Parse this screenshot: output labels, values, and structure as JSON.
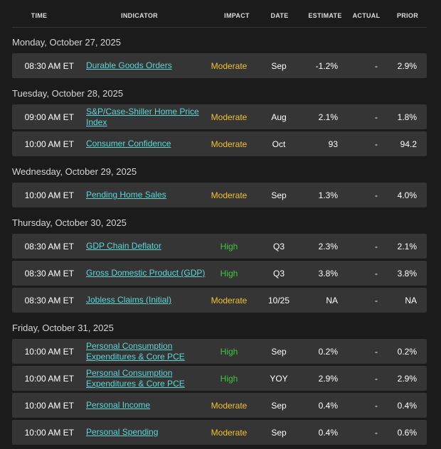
{
  "header": {
    "columns": [
      "TIME",
      "INDICATOR",
      "IMPACT",
      "DATE",
      "ESTIMATE",
      "ACTUAL",
      "PRIOR"
    ]
  },
  "days": [
    {
      "title": "Monday, October 27, 2025",
      "rows": [
        {
          "time": "08:30 AM ET",
          "indicator": "Durable Goods Orders",
          "impact": "Moderate",
          "impact_color": "#f2c230",
          "date": "Sep",
          "estimate": "-1.2%",
          "actual": "-",
          "prior": "2.9%"
        }
      ]
    },
    {
      "title": "Tuesday, October 28, 2025",
      "rows": [
        {
          "time": "09:00 AM ET",
          "indicator": "S&P/Case-Shiller Home Price Index",
          "impact": "Moderate",
          "impact_color": "#f2c230",
          "date": "Aug",
          "estimate": "2.1%",
          "actual": "-",
          "prior": "1.8%"
        },
        {
          "time": "10:00 AM ET",
          "indicator": "Consumer Confidence",
          "impact": "Moderate",
          "impact_color": "#f2c230",
          "date": "Oct",
          "estimate": "93",
          "actual": "-",
          "prior": "94.2"
        }
      ]
    },
    {
      "title": "Wednesday, October 29, 2025",
      "rows": [
        {
          "time": "10:00 AM ET",
          "indicator": "Pending Home Sales",
          "impact": "Moderate",
          "impact_color": "#f2c230",
          "date": "Sep",
          "estimate": "1.3%",
          "actual": "-",
          "prior": "4.0%"
        }
      ]
    },
    {
      "title": "Thursday, October 30, 2025",
      "rows": [
        {
          "time": "08:30 AM ET",
          "indicator": "GDP Chain Deflator",
          "impact": "High",
          "impact_color": "#3cc83c",
          "date": "Q3",
          "estimate": "2.3%",
          "actual": "-",
          "prior": "2.1%"
        },
        {
          "time": "08:30 AM ET",
          "indicator": "Gross Domestic Product (GDP)",
          "impact": "High",
          "impact_color": "#3cc83c",
          "date": "Q3",
          "estimate": "3.8%",
          "actual": "-",
          "prior": "3.8%"
        },
        {
          "time": "08:30 AM ET",
          "indicator": "Jobless Claims (Initial)",
          "impact": "Moderate",
          "impact_color": "#f2c230",
          "date": "10/25",
          "estimate": "NA",
          "actual": "-",
          "prior": "NA"
        }
      ]
    },
    {
      "title": "Friday, October 31, 2025",
      "rows": [
        {
          "time": "10:00 AM ET",
          "indicator": "Personal Consumption Expenditures & Core PCE",
          "impact": "High",
          "impact_color": "#3cc83c",
          "date": "Sep",
          "estimate": "0.2%",
          "actual": "-",
          "prior": "0.2%"
        },
        {
          "time": "10:00 AM ET",
          "indicator": "Personal Consumption Expenditures & Core PCE",
          "impact": "High",
          "impact_color": "#3cc83c",
          "date": "YOY",
          "estimate": "2.9%",
          "actual": "-",
          "prior": "2.9%"
        },
        {
          "time": "10:00 AM ET",
          "indicator": "Personal Income",
          "impact": "Moderate",
          "impact_color": "#f2c230",
          "date": "Sep",
          "estimate": "0.4%",
          "actual": "-",
          "prior": "0.4%"
        },
        {
          "time": "10:00 AM ET",
          "indicator": "Personal Spending",
          "impact": "Moderate",
          "impact_color": "#f2c230",
          "date": "Sep",
          "estimate": "0.4%",
          "actual": "-",
          "prior": "0.6%"
        }
      ]
    }
  ]
}
